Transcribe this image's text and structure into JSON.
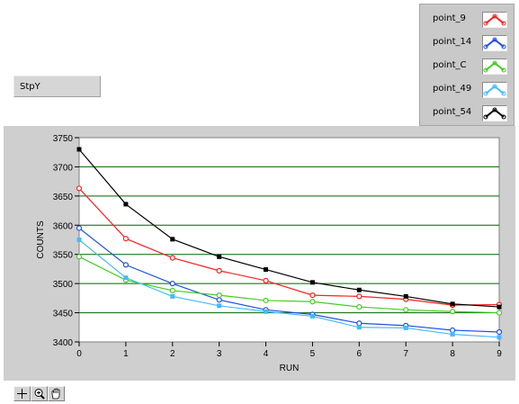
{
  "indicator": {
    "label": "StpY"
  },
  "legend": [
    {
      "name": "point_9",
      "color": "#ff1f1f"
    },
    {
      "name": "point_14",
      "color": "#1f4fe6"
    },
    {
      "name": "point_C",
      "color": "#44cc22"
    },
    {
      "name": "point_49",
      "color": "#44bbff"
    },
    {
      "name": "point_54",
      "color": "#000000"
    }
  ],
  "toolbar": {
    "tools": [
      "crosshair-icon",
      "zoom-icon",
      "pan-hand-icon"
    ]
  },
  "chart_data": {
    "type": "line",
    "title": "",
    "xlabel": "RUN",
    "ylabel": "COUNTS",
    "xlim": [
      0,
      9
    ],
    "ylim": [
      3400,
      3750
    ],
    "x": [
      0,
      1,
      2,
      3,
      4,
      5,
      6,
      7,
      8,
      9
    ],
    "x_ticks": [
      "0",
      "1",
      "2",
      "3",
      "4",
      "5",
      "6",
      "7",
      "8",
      "9"
    ],
    "y_ticks": [
      "3400",
      "3450",
      "3500",
      "3550",
      "3600",
      "3650",
      "3700",
      "3750"
    ],
    "plot_background": "#ffffff",
    "grid_color": "#006400",
    "series": [
      {
        "name": "point_9",
        "color": "#ff1f1f",
        "marker": "circle",
        "values": [
          3663,
          3577,
          3544,
          3522,
          3505,
          3480,
          3478,
          3473,
          3463,
          3464
        ]
      },
      {
        "name": "point_14",
        "color": "#1f4fe6",
        "marker": "circle",
        "values": [
          3595,
          3532,
          3500,
          3472,
          3455,
          3447,
          3432,
          3428,
          3420,
          3417
        ]
      },
      {
        "name": "point_C",
        "color": "#44cc22",
        "marker": "circle",
        "values": [
          3546,
          3506,
          3488,
          3480,
          3471,
          3469,
          3460,
          3455,
          3452,
          3450
        ]
      },
      {
        "name": "point_49",
        "color": "#44bbff",
        "marker": "square",
        "values": [
          3575,
          3510,
          3478,
          3462,
          3452,
          3444,
          3425,
          3424,
          3413,
          3408
        ]
      },
      {
        "name": "point_54",
        "color": "#000000",
        "marker": "square",
        "values": [
          3730,
          3636,
          3576,
          3546,
          3524,
          3502,
          3489,
          3478,
          3465,
          3460
        ]
      }
    ]
  }
}
